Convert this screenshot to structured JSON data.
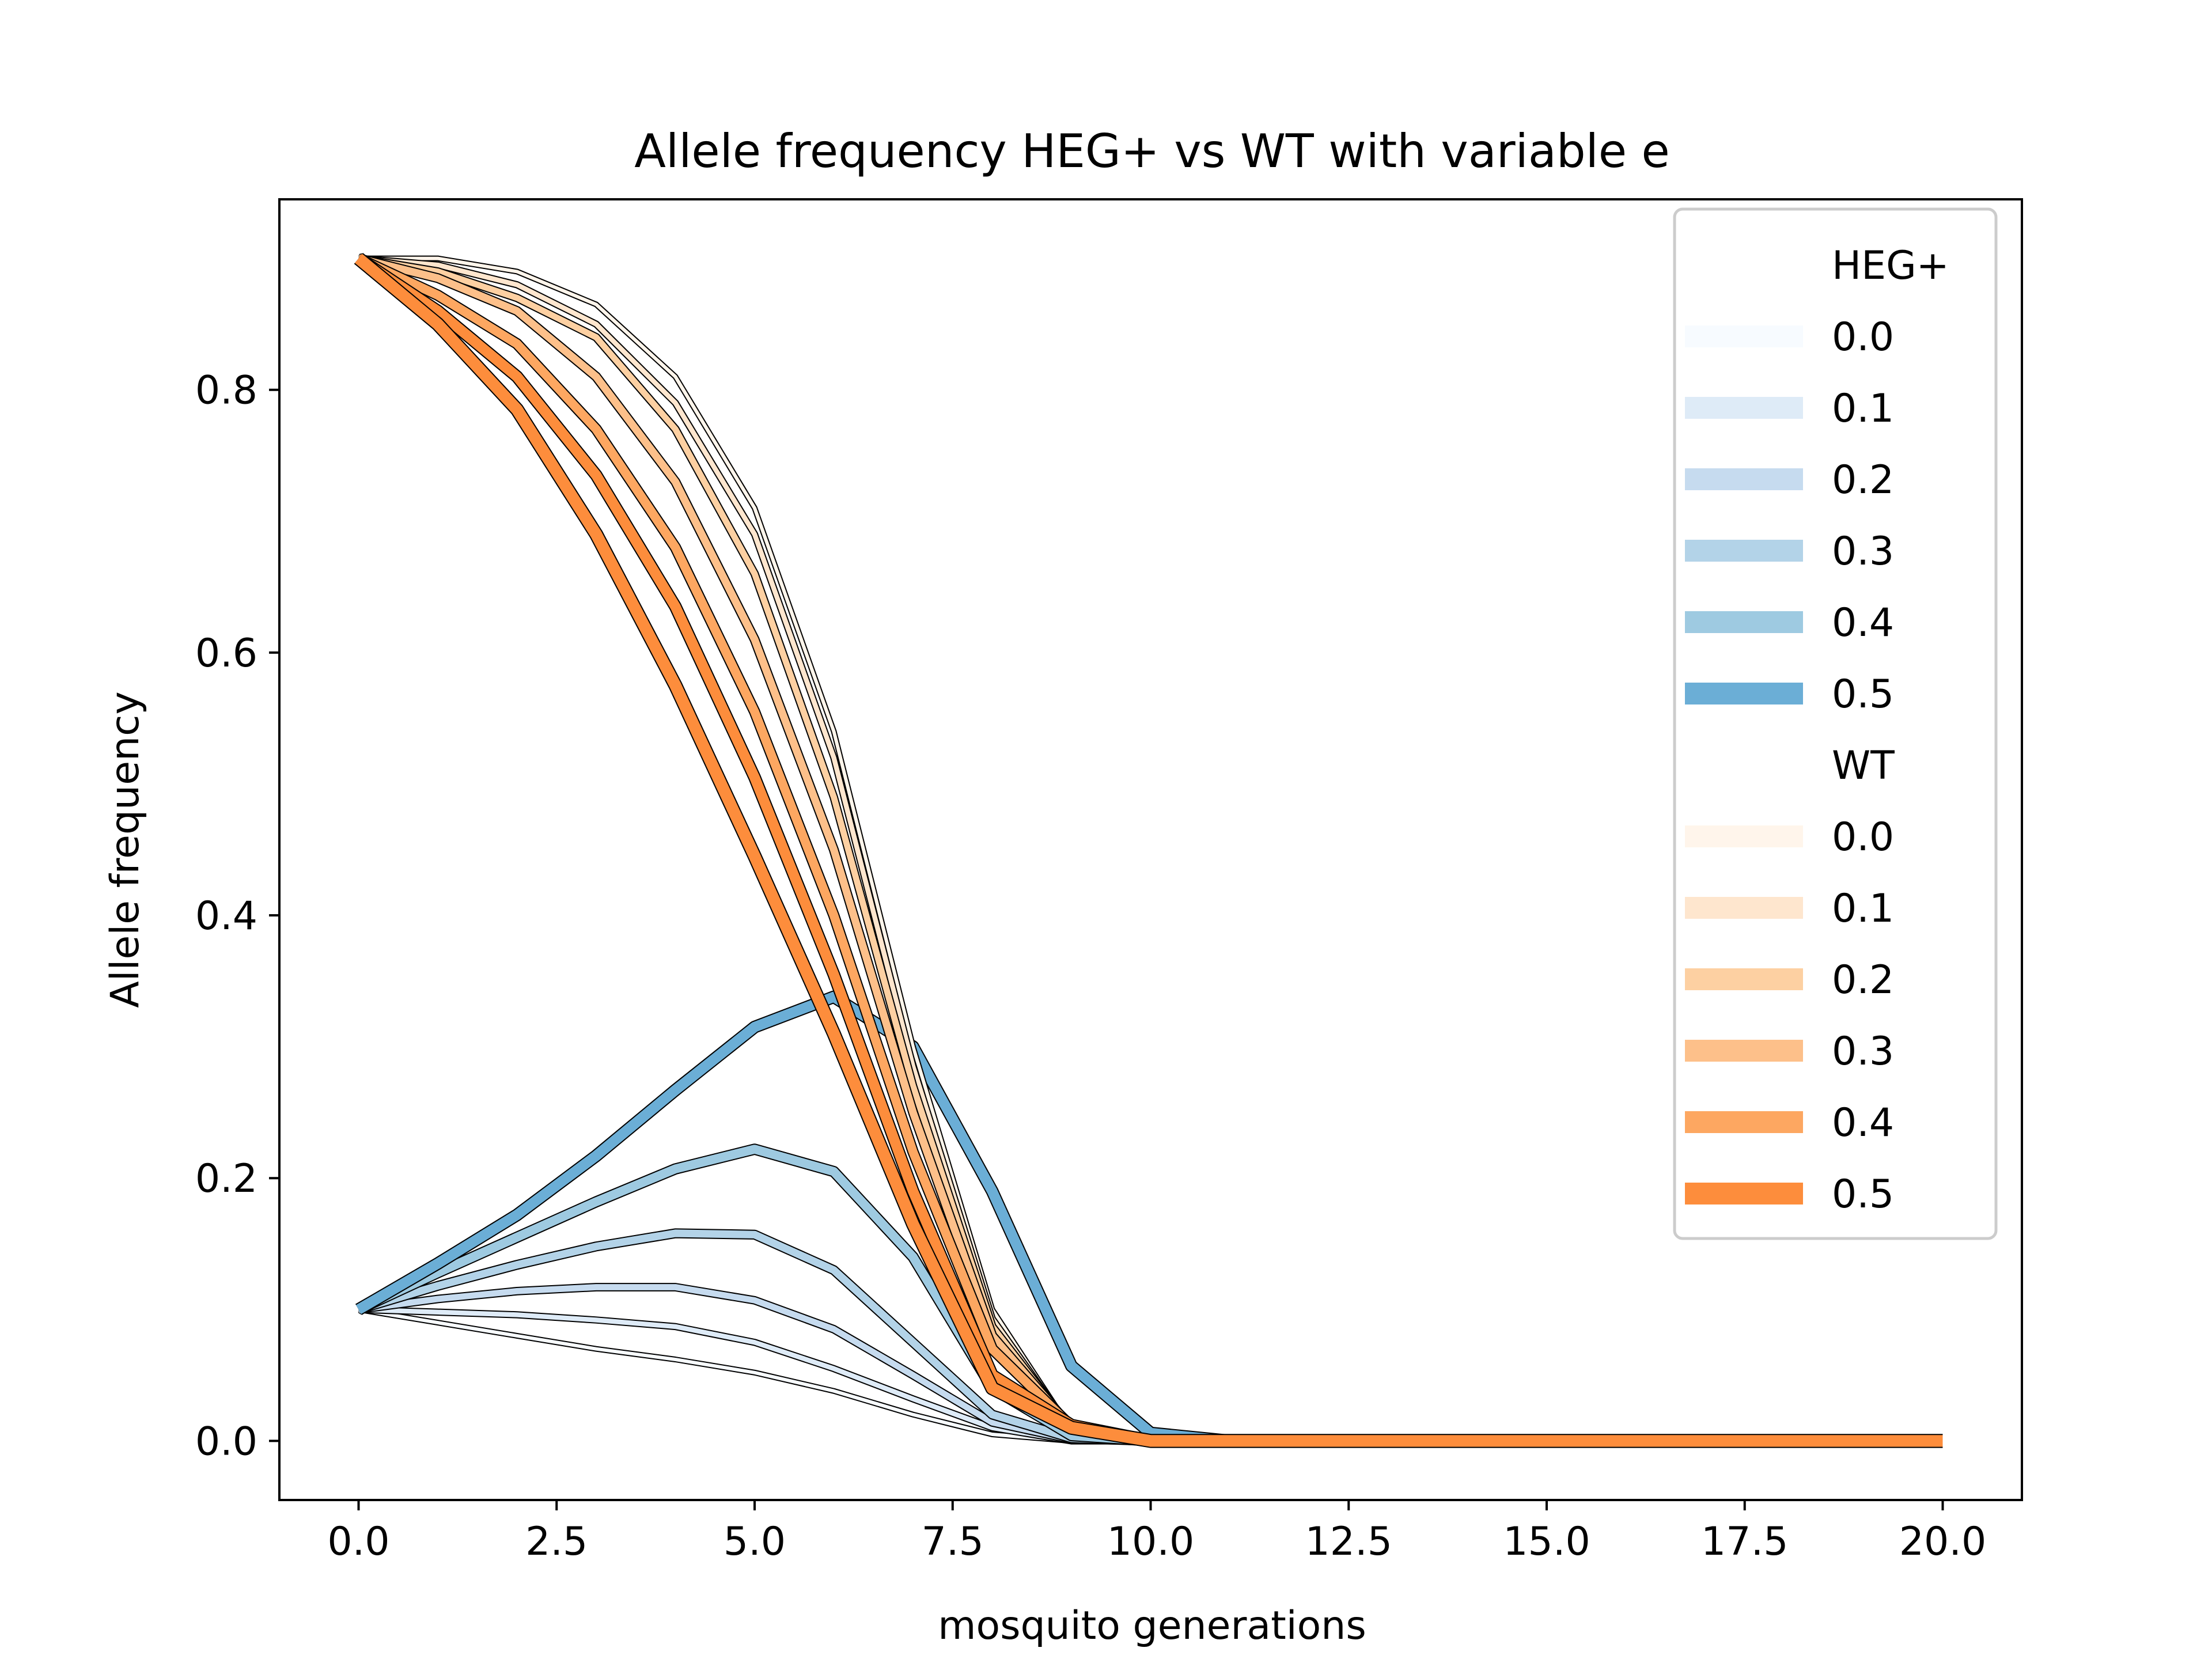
{
  "chart_data": {
    "type": "line",
    "title": "Allele frequency HEG+ vs WT with variable e",
    "xlabel": "mosquito generations",
    "ylabel": "Allele frequency",
    "xlim": [
      -1.0,
      21.0
    ],
    "ylim": [
      -0.045,
      0.945
    ],
    "xticks": [
      0,
      2.5,
      5,
      7.5,
      10,
      12.5,
      15,
      17.5,
      20
    ],
    "xtick_labels": [
      "0.0",
      "2.5",
      "5.0",
      "7.5",
      "10.0",
      "12.5",
      "15.0",
      "17.5",
      "20.0"
    ],
    "yticks": [
      0,
      0.2,
      0.4,
      0.6,
      0.8
    ],
    "ytick_labels": [
      "0.0",
      "0.2",
      "0.4",
      "0.6",
      "0.8"
    ],
    "grid": false,
    "legend_position": "top-right",
    "x": [
      0,
      1,
      2,
      3,
      4,
      5,
      6,
      7,
      8,
      9,
      10,
      11,
      12,
      13,
      14,
      15,
      16,
      17,
      18,
      19,
      20
    ],
    "groups": [
      {
        "title": "HEG+",
        "series": [
          {
            "name": "0.0",
            "color": "#f7fbff",
            "values": [
              0.1,
              0.09,
              0.08,
              0.07,
              0.062,
              0.052,
              0.038,
              0.02,
              0.005,
              0.0,
              0.0,
              0.0,
              0.0,
              0.0,
              0.0,
              0.0,
              0.0,
              0.0,
              0.0,
              0.0,
              0.0
            ]
          },
          {
            "name": "0.1",
            "color": "#deebf7",
            "values": [
              0.1,
              0.098,
              0.096,
              0.092,
              0.087,
              0.075,
              0.055,
              0.032,
              0.01,
              0.0,
              0.0,
              0.0,
              0.0,
              0.0,
              0.0,
              0.0,
              0.0,
              0.0,
              0.0,
              0.0,
              0.0
            ]
          },
          {
            "name": "0.2",
            "color": "#c6dbef",
            "values": [
              0.1,
              0.108,
              0.114,
              0.117,
              0.117,
              0.107,
              0.085,
              0.05,
              0.014,
              0.001,
              0.0,
              0.0,
              0.0,
              0.0,
              0.0,
              0.0,
              0.0,
              0.0,
              0.0,
              0.0,
              0.0
            ]
          },
          {
            "name": "0.3",
            "color": "#b3d3e8",
            "values": [
              0.1,
              0.118,
              0.134,
              0.148,
              0.158,
              0.157,
              0.13,
              0.075,
              0.02,
              0.002,
              0.0,
              0.0,
              0.0,
              0.0,
              0.0,
              0.0,
              0.0,
              0.0,
              0.0,
              0.0,
              0.0
            ]
          },
          {
            "name": "0.4",
            "color": "#9ecae1",
            "values": [
              0.1,
              0.128,
              0.155,
              0.182,
              0.207,
              0.222,
              0.205,
              0.14,
              0.04,
              0.004,
              0.0,
              0.0,
              0.0,
              0.0,
              0.0,
              0.0,
              0.0,
              0.0,
              0.0,
              0.0,
              0.0
            ]
          },
          {
            "name": "0.5",
            "color": "#6baed6",
            "values": [
              0.1,
              0.135,
              0.172,
              0.217,
              0.267,
              0.315,
              0.338,
              0.3,
              0.19,
              0.057,
              0.006,
              0.0,
              0.0,
              0.0,
              0.0,
              0.0,
              0.0,
              0.0,
              0.0,
              0.0,
              0.0
            ]
          }
        ]
      },
      {
        "title": "WT",
        "series": [
          {
            "name": "0.0",
            "color": "#fff5eb",
            "values": [
              0.9,
              0.9,
              0.89,
              0.865,
              0.81,
              0.71,
              0.54,
              0.3,
              0.1,
              0.008,
              0.0,
              0.0,
              0.0,
              0.0,
              0.0,
              0.0,
              0.0,
              0.0,
              0.0,
              0.0,
              0.0
            ]
          },
          {
            "name": "0.1",
            "color": "#fee6ce",
            "values": [
              0.9,
              0.895,
              0.88,
              0.85,
              0.79,
              0.69,
              0.52,
              0.285,
              0.093,
              0.008,
              0.0,
              0.0,
              0.0,
              0.0,
              0.0,
              0.0,
              0.0,
              0.0,
              0.0,
              0.0,
              0.0
            ]
          },
          {
            "name": "0.2",
            "color": "#fdd0a2",
            "values": [
              0.9,
              0.89,
              0.87,
              0.84,
              0.77,
              0.66,
              0.49,
              0.27,
              0.087,
              0.009,
              0.0,
              0.0,
              0.0,
              0.0,
              0.0,
              0.0,
              0.0,
              0.0,
              0.0,
              0.0,
              0.0
            ]
          },
          {
            "name": "0.3",
            "color": "#fdc08a",
            "values": [
              0.9,
              0.885,
              0.86,
              0.81,
              0.73,
              0.61,
              0.45,
              0.25,
              0.08,
              0.01,
              0.0,
              0.0,
              0.0,
              0.0,
              0.0,
              0.0,
              0.0,
              0.0,
              0.0,
              0.0,
              0.0
            ]
          },
          {
            "name": "0.4",
            "color": "#fda761",
            "values": [
              0.9,
              0.872,
              0.835,
              0.77,
              0.68,
              0.555,
              0.4,
              0.22,
              0.07,
              0.011,
              0.0,
              0.0,
              0.0,
              0.0,
              0.0,
              0.0,
              0.0,
              0.0,
              0.0,
              0.0,
              0.0
            ]
          },
          {
            "name": "0.5",
            "color": "#fd8d3c",
            "values": [
              0.9,
              0.86,
              0.81,
              0.735,
              0.635,
              0.505,
              0.355,
              0.19,
              0.05,
              0.012,
              0.0,
              0.0,
              0.0,
              0.0,
              0.0,
              0.0,
              0.0,
              0.0,
              0.0,
              0.0,
              0.0
            ]
          },
          {
            "name": "",
            "color": "#fd8d3c",
            "values": [
              0.9,
              0.85,
              0.785,
              0.69,
              0.575,
              0.445,
              0.31,
              0.165,
              0.04,
              0.01,
              0.0,
              0.0,
              0.0,
              0.0,
              0.0,
              0.0,
              0.0,
              0.0,
              0.0,
              0.0,
              0.0
            ]
          }
        ]
      }
    ]
  }
}
